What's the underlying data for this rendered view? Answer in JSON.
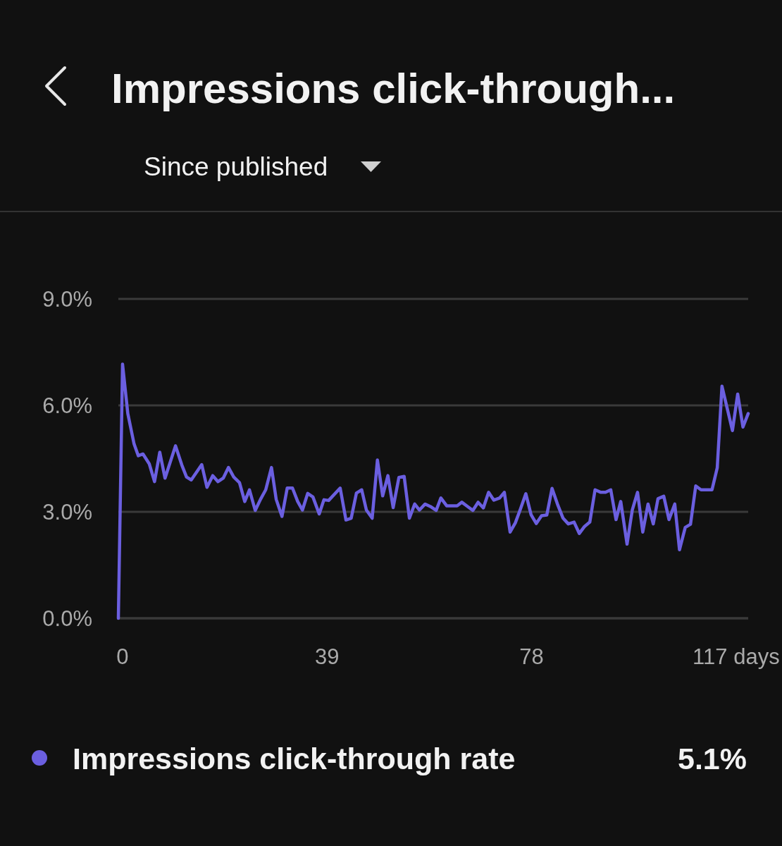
{
  "chart_data": {
    "type": "line",
    "title": "Impressions click-through...",
    "subtitle": "Since published",
    "xlim": [
      -0.8,
      119.3
    ],
    "ylim": [
      0,
      9
    ],
    "xticks": [
      0,
      39,
      78,
      {
        "value": 117,
        "label": "117 days"
      }
    ],
    "yticks": [
      {
        "value": 0,
        "label": "0.0%"
      },
      {
        "value": 3,
        "label": "3.0%"
      },
      {
        "value": 6,
        "label": "6.0%"
      },
      {
        "value": 9,
        "label": "9.0%"
      }
    ],
    "grid": "y",
    "legend": "bottom",
    "marker": "none",
    "line_style": "solid",
    "annotations": [
      "5.1%"
    ],
    "series": [
      {
        "name": "Impressions click-through rate",
        "color": "#6b5fe0",
        "x": [
          -0.8,
          0,
          1.0,
          2.2,
          3.0,
          3.9,
          5.1,
          6.1,
          7.1,
          8.1,
          10.1,
          11.3,
          12.2,
          13.1,
          15.1,
          16.1,
          17.2,
          18.2,
          19.2,
          20.2,
          21.2,
          22.3,
          23.3,
          24.2,
          25.3,
          26.3,
          27.3,
          28.4,
          29.3,
          30.4,
          31.4,
          32.4,
          33.4,
          34.3,
          35.3,
          36.3,
          37.5,
          38.4,
          39.3,
          41.5,
          42.6,
          43.6,
          44.6,
          45.6,
          46.5,
          47.6,
          48.6,
          49.6,
          50.6,
          51.6,
          52.7,
          53.7,
          54.7,
          55.7,
          56.6,
          57.7,
          58.7,
          59.8,
          60.7,
          61.8,
          63.8,
          64.7,
          65.8,
          66.8,
          67.8,
          68.8,
          69.8,
          70.8,
          71.9,
          72.8,
          73.9,
          74.9,
          75.9,
          76.9,
          77.9,
          78.9,
          79.9,
          80.9,
          81.9,
          83.0,
          84.0,
          85.0,
          86.1,
          87.1,
          88.1,
          89.1,
          90.1,
          91.2,
          92.1,
          93.1,
          94.1,
          95.0,
          96.2,
          97.2,
          98.2,
          99.2,
          100.2,
          101.2,
          102.1,
          103.2,
          104.2,
          105.3,
          106.2,
          107.3,
          108.3,
          109.3,
          110.3,
          112.4,
          113.4,
          114.3,
          116.3,
          117.3,
          118.3,
          119.3
        ],
        "values": [
          0,
          7.16,
          5.77,
          4.91,
          4.58,
          4.63,
          4.35,
          3.85,
          4.68,
          3.95,
          4.86,
          4.32,
          3.98,
          3.9,
          4.33,
          3.69,
          4.02,
          3.85,
          3.95,
          4.25,
          3.98,
          3.82,
          3.29,
          3.62,
          3.04,
          3.35,
          3.62,
          4.25,
          3.35,
          2.87,
          3.67,
          3.67,
          3.29,
          3.05,
          3.52,
          3.42,
          2.94,
          3.34,
          3.32,
          3.67,
          2.77,
          2.82,
          3.53,
          3.62,
          3.05,
          2.82,
          4.46,
          3.45,
          4.02,
          3.12,
          3.97,
          4.0,
          2.82,
          3.22,
          3.05,
          3.22,
          3.15,
          3.04,
          3.39,
          3.17,
          3.17,
          3.27,
          3.15,
          3.04,
          3.27,
          3.11,
          3.55,
          3.33,
          3.39,
          3.55,
          2.43,
          2.69,
          3.09,
          3.51,
          2.92,
          2.67,
          2.89,
          2.91,
          3.66,
          3.19,
          2.82,
          2.66,
          2.71,
          2.39,
          2.59,
          2.71,
          3.62,
          3.55,
          3.55,
          3.62,
          2.78,
          3.29,
          2.09,
          3.05,
          3.55,
          2.43,
          3.22,
          2.66,
          3.37,
          3.44,
          2.78,
          3.22,
          1.93,
          2.56,
          2.65,
          3.73,
          3.62,
          3.62,
          4.24,
          6.54,
          5.29,
          6.32,
          5.39,
          5.77
        ]
      }
    ]
  }
}
